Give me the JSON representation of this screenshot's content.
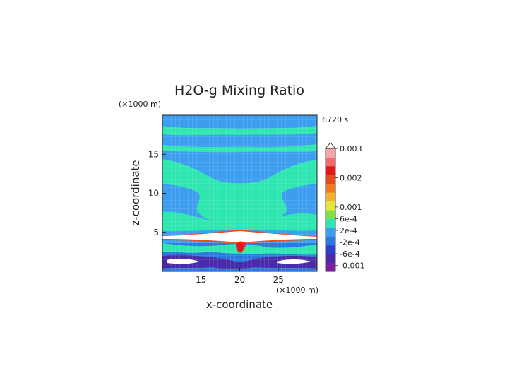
{
  "chart_data": {
    "type": "heatmap",
    "title": "H2O-g Mixing Ratio",
    "time_label": "6720 s",
    "xlabel": "x-coordinate",
    "ylabel": "z-coordinate",
    "x_unit": "(×1000 m)",
    "y_unit": "(×1000 m)",
    "xlim": [
      10,
      30
    ],
    "ylim": [
      0,
      20
    ],
    "x_ticks": [
      15,
      20,
      25
    ],
    "y_ticks": [
      5,
      10,
      15
    ],
    "colorbar": {
      "labels": [
        "0.003",
        "0.002",
        "0.001",
        "6e-4",
        "2e-4",
        "-2e-4",
        "-6e-4",
        "-0.001"
      ],
      "label_values": [
        0.003,
        0.002,
        0.001,
        0.0006,
        0.0002,
        -0.0002,
        -0.0006,
        -0.001
      ],
      "min": -0.0012,
      "max": 0.003,
      "colors": [
        "#7a1fa2",
        "#4b2aa8",
        "#2f3fc9",
        "#2a78e0",
        "#3d9ef0",
        "#2ee6b0",
        "#7fe04a",
        "#e6e63a",
        "#f4b030",
        "#f07a22",
        "#e84a1c",
        "#e21818",
        "#f26a6a",
        "#f6a6a6"
      ]
    },
    "grid": true
  }
}
